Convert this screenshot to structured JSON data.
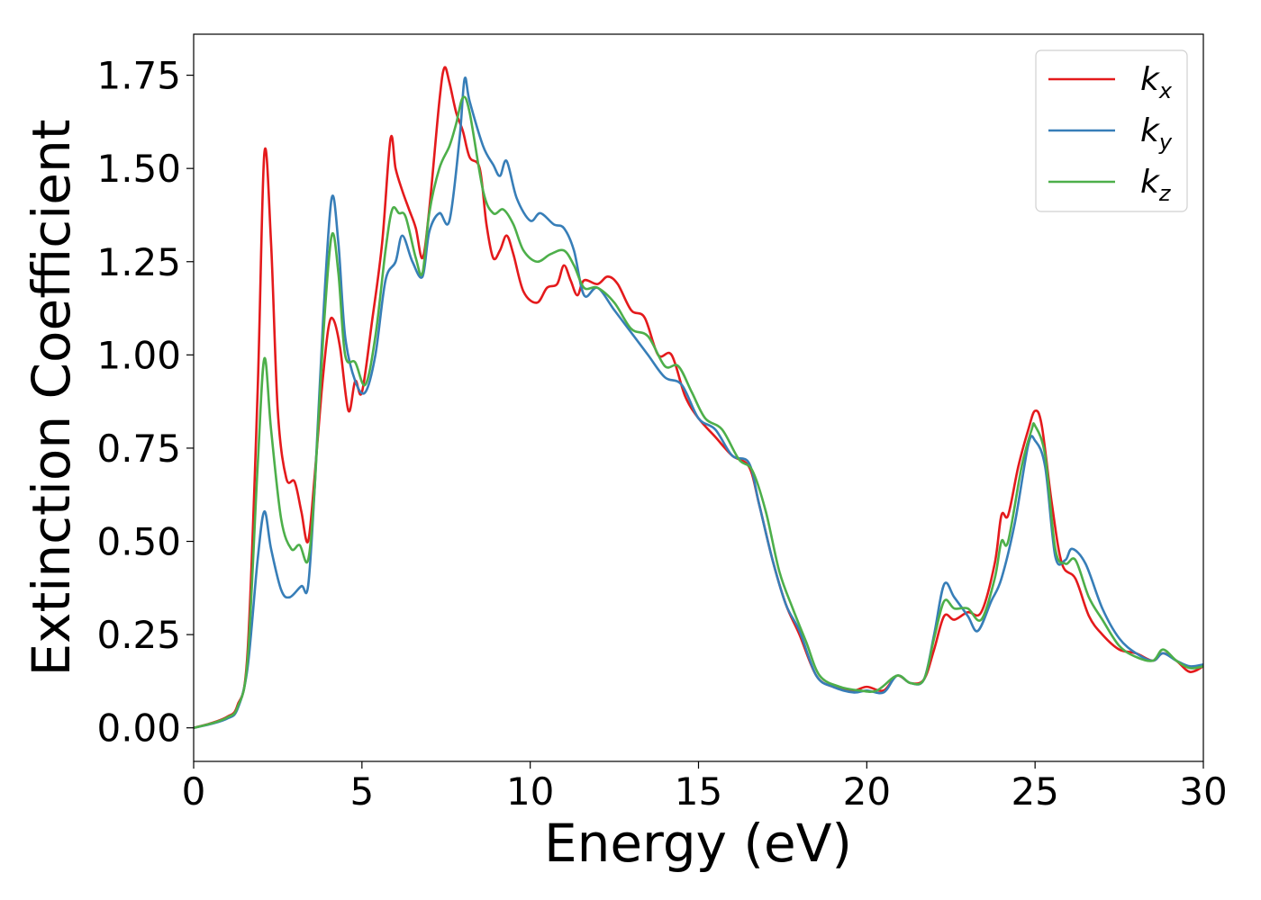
{
  "chart_data": {
    "type": "line",
    "title": "",
    "xlabel": "Energy (eV)",
    "ylabel": "Extinction Coefficient",
    "xlim": [
      0,
      30
    ],
    "ylim": [
      -0.09,
      1.86
    ],
    "xticks": [
      0,
      5,
      10,
      15,
      20,
      25,
      30
    ],
    "xtick_labels": [
      "0",
      "5",
      "10",
      "15",
      "20",
      "25",
      "30"
    ],
    "yticks": [
      0.0,
      0.25,
      0.5,
      0.75,
      1.0,
      1.25,
      1.5,
      1.75
    ],
    "ytick_labels": [
      "0.00",
      "0.25",
      "0.50",
      "0.75",
      "1.00",
      "1.25",
      "1.50",
      "1.75"
    ],
    "grid": false,
    "legend_position": "top-right",
    "series": [
      {
        "name": "kx",
        "label_base": "k",
        "label_sub": "x",
        "color": "#e41a1c",
        "points": [
          [
            0,
            0
          ],
          [
            0.5,
            0.012
          ],
          [
            1.0,
            0.03
          ],
          [
            1.3,
            0.06
          ],
          [
            1.6,
            0.2
          ],
          [
            1.9,
            0.9
          ],
          [
            2.1,
            1.54
          ],
          [
            2.3,
            1.3
          ],
          [
            2.5,
            0.85
          ],
          [
            2.75,
            0.67
          ],
          [
            3.0,
            0.66
          ],
          [
            3.2,
            0.58
          ],
          [
            3.4,
            0.5
          ],
          [
            3.6,
            0.68
          ],
          [
            3.8,
            0.9
          ],
          [
            4.0,
            1.07
          ],
          [
            4.15,
            1.095
          ],
          [
            4.35,
            1.02
          ],
          [
            4.6,
            0.85
          ],
          [
            4.8,
            0.93
          ],
          [
            5.0,
            0.9
          ],
          [
            5.3,
            1.09
          ],
          [
            5.6,
            1.3
          ],
          [
            5.85,
            1.58
          ],
          [
            6.0,
            1.5
          ],
          [
            6.2,
            1.44
          ],
          [
            6.4,
            1.39
          ],
          [
            6.6,
            1.34
          ],
          [
            6.8,
            1.26
          ],
          [
            7.0,
            1.39
          ],
          [
            7.3,
            1.68
          ],
          [
            7.45,
            1.77
          ],
          [
            7.6,
            1.73
          ],
          [
            7.8,
            1.65
          ],
          [
            8.0,
            1.6
          ],
          [
            8.2,
            1.53
          ],
          [
            8.5,
            1.5
          ],
          [
            8.7,
            1.35
          ],
          [
            8.9,
            1.26
          ],
          [
            9.1,
            1.28
          ],
          [
            9.3,
            1.32
          ],
          [
            9.5,
            1.27
          ],
          [
            9.8,
            1.17
          ],
          [
            10.2,
            1.14
          ],
          [
            10.5,
            1.18
          ],
          [
            10.8,
            1.19
          ],
          [
            11.0,
            1.24
          ],
          [
            11.2,
            1.2
          ],
          [
            11.4,
            1.16
          ],
          [
            11.6,
            1.2
          ],
          [
            12.0,
            1.19
          ],
          [
            12.3,
            1.21
          ],
          [
            12.6,
            1.19
          ],
          [
            13.0,
            1.12
          ],
          [
            13.4,
            1.1
          ],
          [
            13.8,
            1.0
          ],
          [
            14.2,
            1.0
          ],
          [
            14.6,
            0.89
          ],
          [
            15.0,
            0.83
          ],
          [
            15.5,
            0.78
          ],
          [
            16.0,
            0.73
          ],
          [
            16.5,
            0.7
          ],
          [
            16.8,
            0.6
          ],
          [
            17.2,
            0.45
          ],
          [
            17.6,
            0.33
          ],
          [
            18.0,
            0.25
          ],
          [
            18.5,
            0.14
          ],
          [
            19.0,
            0.11
          ],
          [
            19.6,
            0.1
          ],
          [
            20.0,
            0.11
          ],
          [
            20.5,
            0.1
          ],
          [
            20.9,
            0.14
          ],
          [
            21.3,
            0.12
          ],
          [
            21.7,
            0.13
          ],
          [
            22.0,
            0.21
          ],
          [
            22.3,
            0.3
          ],
          [
            22.6,
            0.29
          ],
          [
            23.0,
            0.31
          ],
          [
            23.4,
            0.31
          ],
          [
            23.8,
            0.44
          ],
          [
            24.0,
            0.57
          ],
          [
            24.2,
            0.57
          ],
          [
            24.5,
            0.7
          ],
          [
            24.8,
            0.8
          ],
          [
            25.0,
            0.85
          ],
          [
            25.2,
            0.81
          ],
          [
            25.5,
            0.6
          ],
          [
            25.8,
            0.44
          ],
          [
            26.2,
            0.4
          ],
          [
            26.6,
            0.3
          ],
          [
            27.0,
            0.25
          ],
          [
            27.5,
            0.21
          ],
          [
            28.0,
            0.2
          ],
          [
            28.5,
            0.18
          ],
          [
            28.8,
            0.2
          ],
          [
            29.2,
            0.18
          ],
          [
            29.6,
            0.15
          ],
          [
            30.0,
            0.165
          ]
        ]
      },
      {
        "name": "ky",
        "label_base": "k",
        "label_sub": "y",
        "color": "#377eb8",
        "points": [
          [
            0,
            0
          ],
          [
            0.5,
            0.01
          ],
          [
            1.0,
            0.025
          ],
          [
            1.3,
            0.05
          ],
          [
            1.6,
            0.16
          ],
          [
            1.9,
            0.45
          ],
          [
            2.1,
            0.58
          ],
          [
            2.3,
            0.48
          ],
          [
            2.6,
            0.37
          ],
          [
            2.85,
            0.35
          ],
          [
            3.2,
            0.38
          ],
          [
            3.4,
            0.38
          ],
          [
            3.6,
            0.65
          ],
          [
            3.85,
            1.1
          ],
          [
            4.1,
            1.42
          ],
          [
            4.3,
            1.3
          ],
          [
            4.5,
            1.05
          ],
          [
            4.8,
            0.93
          ],
          [
            5.1,
            0.9
          ],
          [
            5.4,
            1.0
          ],
          [
            5.7,
            1.2
          ],
          [
            6.0,
            1.25
          ],
          [
            6.2,
            1.32
          ],
          [
            6.5,
            1.25
          ],
          [
            6.8,
            1.21
          ],
          [
            7.0,
            1.33
          ],
          [
            7.3,
            1.38
          ],
          [
            7.6,
            1.36
          ],
          [
            7.9,
            1.58
          ],
          [
            8.05,
            1.74
          ],
          [
            8.2,
            1.68
          ],
          [
            8.6,
            1.56
          ],
          [
            8.9,
            1.51
          ],
          [
            9.1,
            1.48
          ],
          [
            9.3,
            1.52
          ],
          [
            9.6,
            1.42
          ],
          [
            10.0,
            1.36
          ],
          [
            10.3,
            1.38
          ],
          [
            10.7,
            1.35
          ],
          [
            11.0,
            1.34
          ],
          [
            11.3,
            1.28
          ],
          [
            11.6,
            1.16
          ],
          [
            12.0,
            1.18
          ],
          [
            12.5,
            1.12
          ],
          [
            13.0,
            1.06
          ],
          [
            13.5,
            1.0
          ],
          [
            14.0,
            0.94
          ],
          [
            14.5,
            0.92
          ],
          [
            15.0,
            0.83
          ],
          [
            15.5,
            0.8
          ],
          [
            16.0,
            0.73
          ],
          [
            16.5,
            0.71
          ],
          [
            16.8,
            0.6
          ],
          [
            17.2,
            0.45
          ],
          [
            17.6,
            0.33
          ],
          [
            18.0,
            0.26
          ],
          [
            18.5,
            0.14
          ],
          [
            19.0,
            0.11
          ],
          [
            19.6,
            0.095
          ],
          [
            20.0,
            0.1
          ],
          [
            20.5,
            0.095
          ],
          [
            20.9,
            0.14
          ],
          [
            21.3,
            0.12
          ],
          [
            21.7,
            0.13
          ],
          [
            22.0,
            0.25
          ],
          [
            22.3,
            0.385
          ],
          [
            22.6,
            0.35
          ],
          [
            23.0,
            0.3
          ],
          [
            23.3,
            0.26
          ],
          [
            23.7,
            0.34
          ],
          [
            24.0,
            0.4
          ],
          [
            24.4,
            0.55
          ],
          [
            24.8,
            0.76
          ],
          [
            25.0,
            0.77
          ],
          [
            25.3,
            0.7
          ],
          [
            25.6,
            0.46
          ],
          [
            25.9,
            0.45
          ],
          [
            26.1,
            0.48
          ],
          [
            26.5,
            0.44
          ],
          [
            27.0,
            0.32
          ],
          [
            27.5,
            0.24
          ],
          [
            28.0,
            0.2
          ],
          [
            28.5,
            0.18
          ],
          [
            28.8,
            0.2
          ],
          [
            29.2,
            0.18
          ],
          [
            29.6,
            0.165
          ],
          [
            30.0,
            0.17
          ]
        ]
      },
      {
        "name": "kz",
        "label_base": "k",
        "label_sub": "z",
        "color": "#4daf4a",
        "points": [
          [
            0,
            0
          ],
          [
            0.5,
            0.011
          ],
          [
            1.0,
            0.028
          ],
          [
            1.3,
            0.055
          ],
          [
            1.6,
            0.18
          ],
          [
            1.9,
            0.7
          ],
          [
            2.1,
            0.99
          ],
          [
            2.3,
            0.8
          ],
          [
            2.6,
            0.56
          ],
          [
            2.9,
            0.48
          ],
          [
            3.15,
            0.49
          ],
          [
            3.4,
            0.45
          ],
          [
            3.6,
            0.65
          ],
          [
            3.85,
            1.05
          ],
          [
            4.1,
            1.32
          ],
          [
            4.3,
            1.22
          ],
          [
            4.5,
            1.0
          ],
          [
            4.8,
            0.98
          ],
          [
            5.1,
            0.92
          ],
          [
            5.4,
            1.05
          ],
          [
            5.7,
            1.28
          ],
          [
            5.9,
            1.39
          ],
          [
            6.1,
            1.38
          ],
          [
            6.3,
            1.37
          ],
          [
            6.6,
            1.26
          ],
          [
            6.8,
            1.22
          ],
          [
            7.0,
            1.38
          ],
          [
            7.3,
            1.5
          ],
          [
            7.6,
            1.56
          ],
          [
            7.8,
            1.62
          ],
          [
            8.0,
            1.69
          ],
          [
            8.2,
            1.65
          ],
          [
            8.6,
            1.44
          ],
          [
            8.9,
            1.38
          ],
          [
            9.2,
            1.39
          ],
          [
            9.5,
            1.35
          ],
          [
            9.8,
            1.28
          ],
          [
            10.2,
            1.25
          ],
          [
            10.6,
            1.27
          ],
          [
            11.0,
            1.28
          ],
          [
            11.3,
            1.24
          ],
          [
            11.6,
            1.18
          ],
          [
            12.0,
            1.18
          ],
          [
            12.5,
            1.14
          ],
          [
            13.0,
            1.07
          ],
          [
            13.5,
            1.05
          ],
          [
            14.0,
            0.97
          ],
          [
            14.4,
            0.97
          ],
          [
            14.8,
            0.9
          ],
          [
            15.2,
            0.83
          ],
          [
            15.7,
            0.8
          ],
          [
            16.2,
            0.72
          ],
          [
            16.6,
            0.69
          ],
          [
            17.0,
            0.58
          ],
          [
            17.4,
            0.42
          ],
          [
            17.8,
            0.32
          ],
          [
            18.2,
            0.23
          ],
          [
            18.6,
            0.14
          ],
          [
            19.2,
            0.11
          ],
          [
            19.8,
            0.1
          ],
          [
            20.3,
            0.1
          ],
          [
            20.9,
            0.14
          ],
          [
            21.3,
            0.12
          ],
          [
            21.7,
            0.13
          ],
          [
            22.0,
            0.24
          ],
          [
            22.3,
            0.34
          ],
          [
            22.6,
            0.32
          ],
          [
            23.0,
            0.32
          ],
          [
            23.4,
            0.29
          ],
          [
            23.8,
            0.4
          ],
          [
            24.0,
            0.5
          ],
          [
            24.2,
            0.5
          ],
          [
            24.6,
            0.7
          ],
          [
            24.9,
            0.8
          ],
          [
            25.0,
            0.81
          ],
          [
            25.3,
            0.73
          ],
          [
            25.6,
            0.48
          ],
          [
            25.9,
            0.44
          ],
          [
            26.2,
            0.45
          ],
          [
            26.6,
            0.35
          ],
          [
            27.0,
            0.29
          ],
          [
            27.5,
            0.22
          ],
          [
            28.0,
            0.19
          ],
          [
            28.5,
            0.18
          ],
          [
            28.8,
            0.21
          ],
          [
            29.2,
            0.18
          ],
          [
            29.6,
            0.16
          ],
          [
            30.0,
            0.165
          ]
        ]
      }
    ]
  }
}
